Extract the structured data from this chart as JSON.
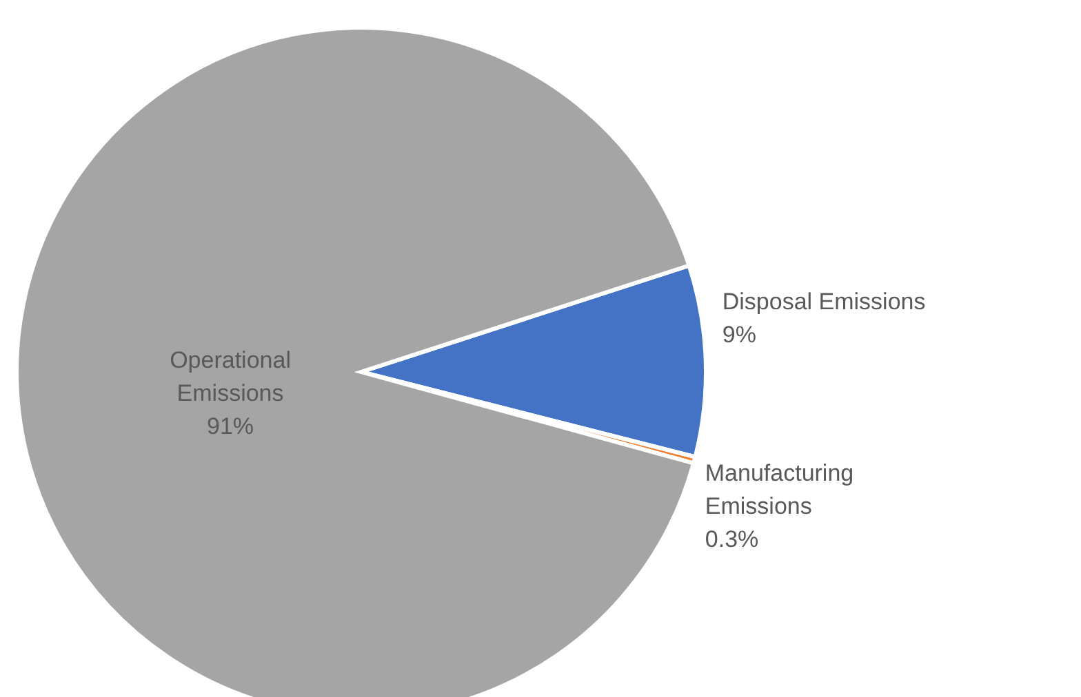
{
  "chart_data": {
    "type": "pie",
    "categories": [
      "Disposal Emissions",
      "Manufacturing Emissions",
      "Operational Emissions"
    ],
    "values": [
      9,
      0.3,
      91
    ],
    "colors": [
      "#4472c4",
      "#ed7d31",
      "#a5a5a5"
    ],
    "value_labels": [
      "9%",
      "0.3%",
      "91%"
    ]
  }
}
